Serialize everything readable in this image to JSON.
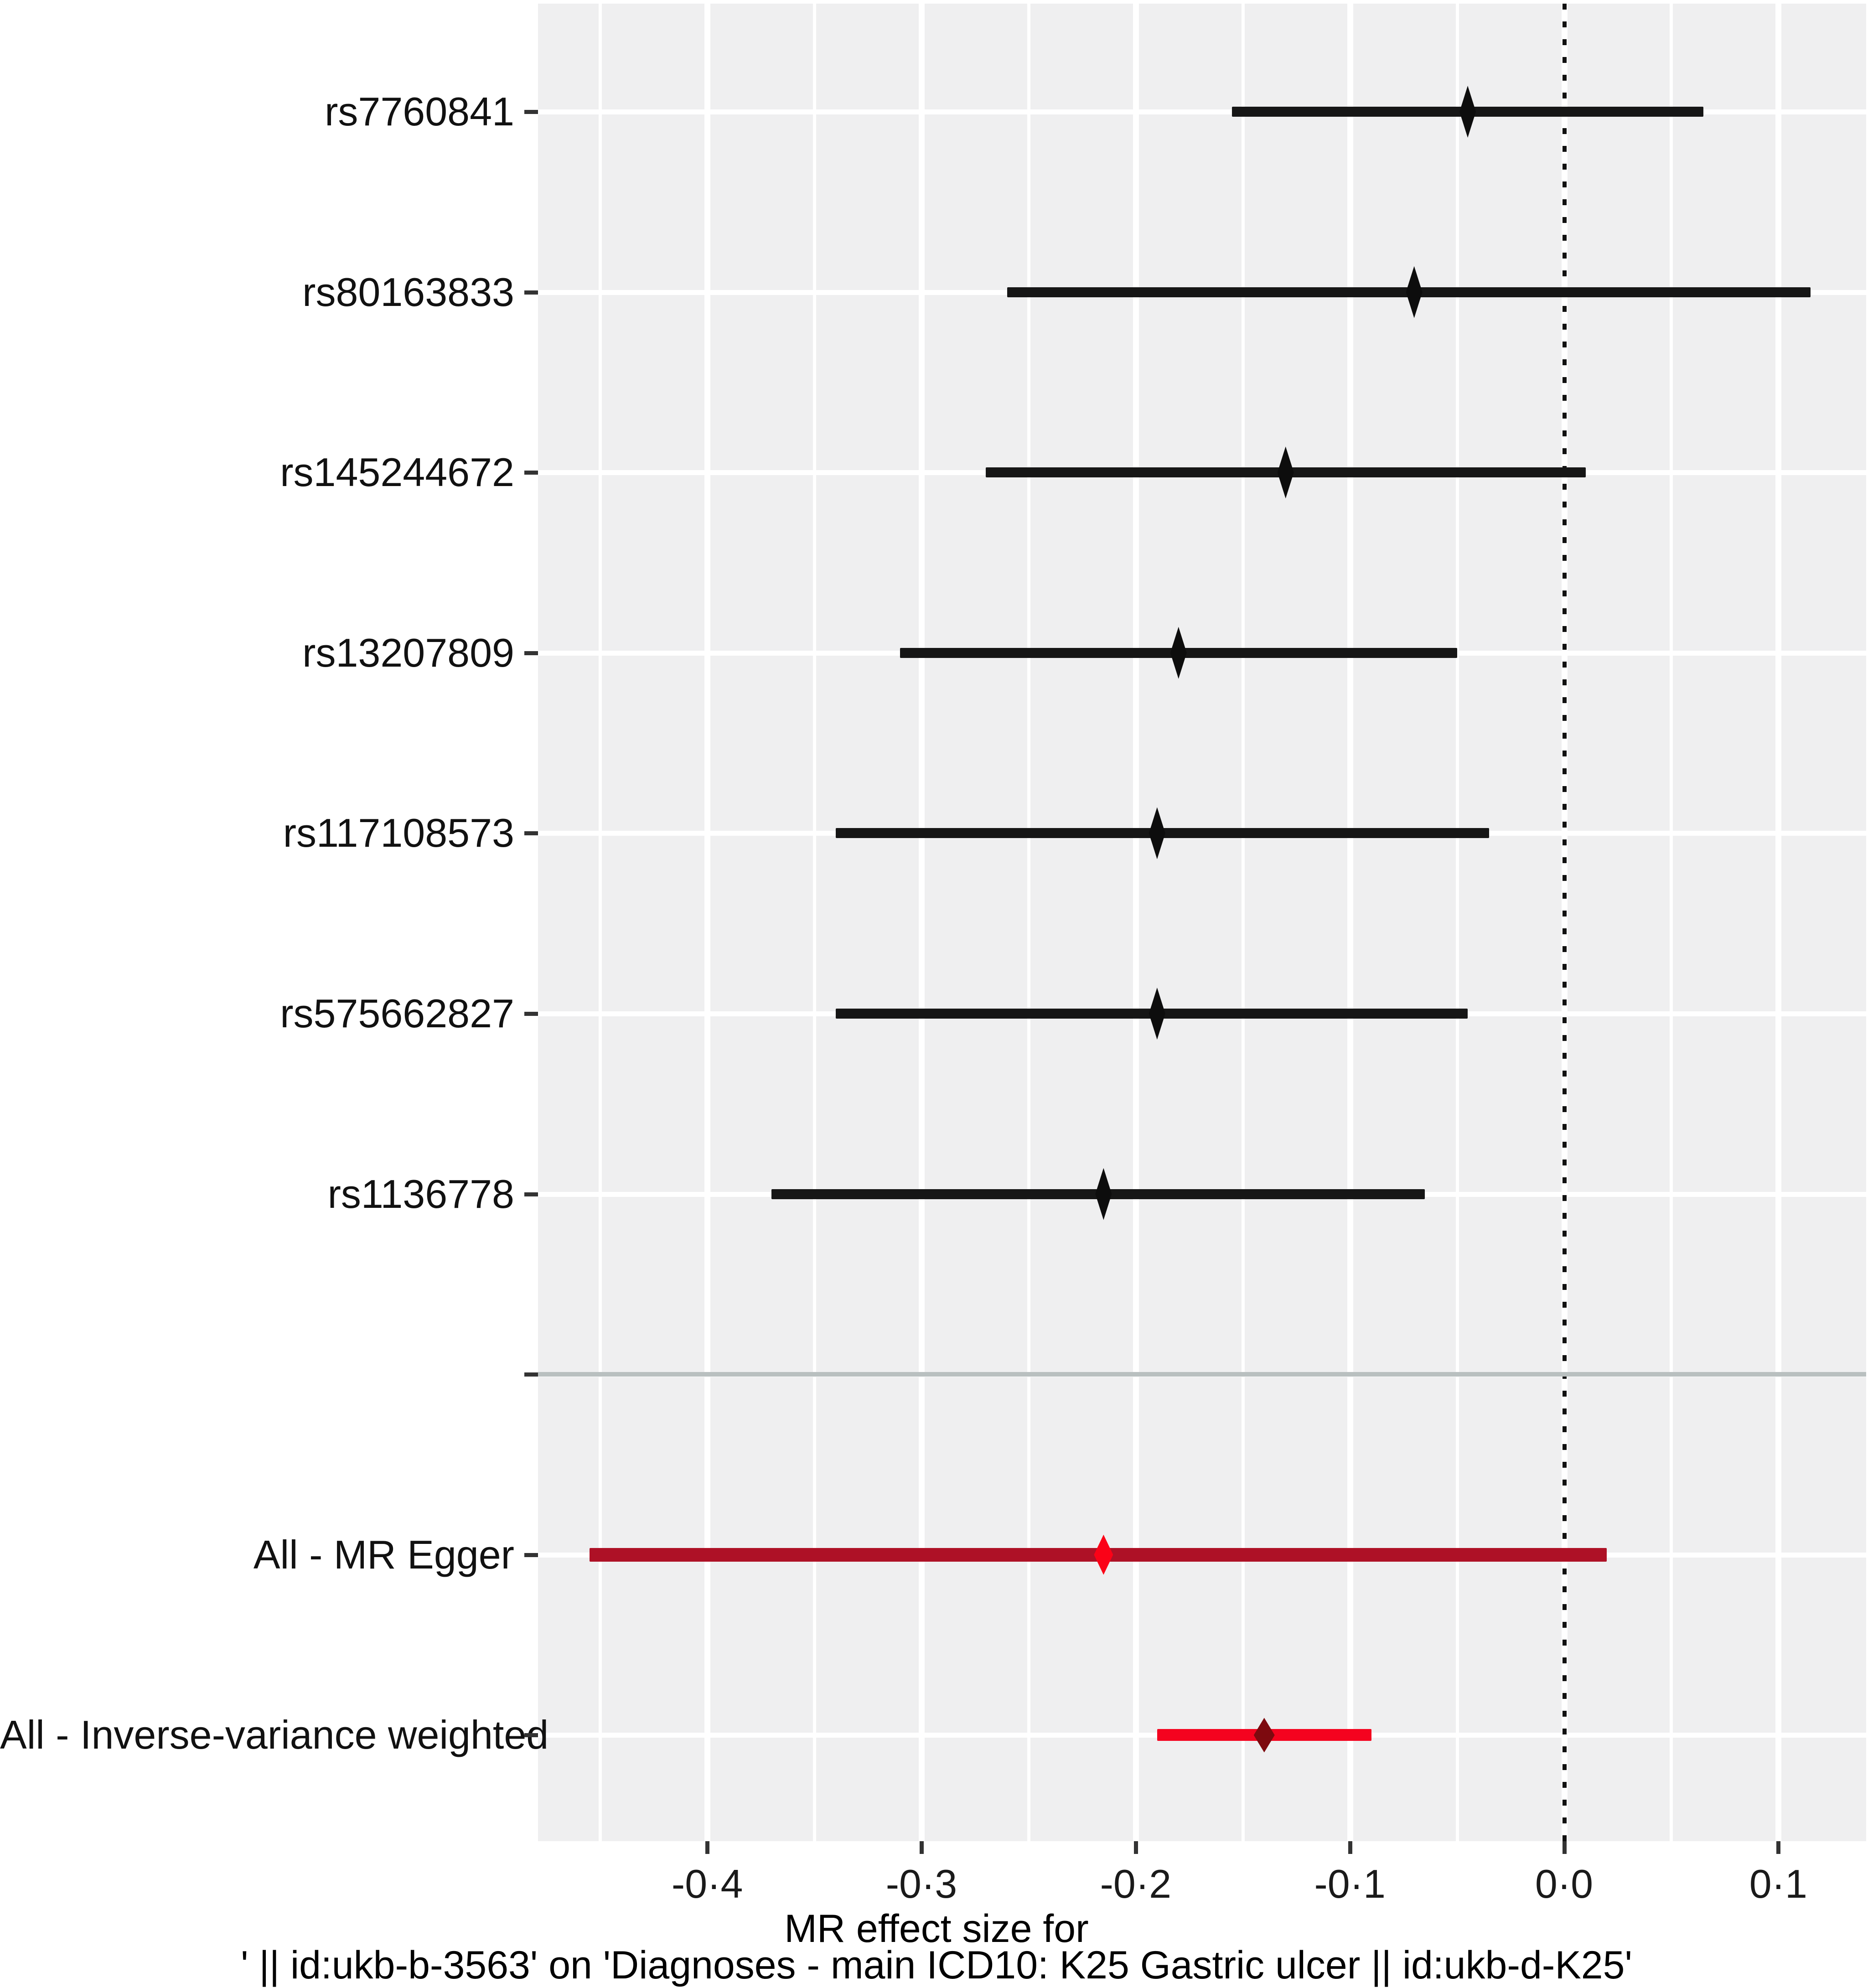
{
  "chart_data": {
    "type": "forest",
    "title": "",
    "xlabel_line1": "MR effect size for",
    "xlabel_line2": "' || id:ukb-b-3563' on 'Diagnoses - main ICD10: K25 Gastric ulcer || id:ukb-d-K25'",
    "x_axis": {
      "tick_values": [
        -0.4,
        -0.3,
        -0.2,
        -0.1,
        0.0,
        0.1
      ],
      "tick_labels": [
        "-0·4",
        "-0·3",
        "-0·2",
        "-0·1",
        "0·0",
        "0·1"
      ],
      "minor_tick_values": [
        -0.45,
        -0.35,
        -0.25,
        -0.15,
        -0.05,
        0.05
      ],
      "xlim": [
        -0.479,
        0.141
      ],
      "zero_reference_line": 0.0
    },
    "rows": [
      {
        "label": "rs7760841",
        "estimate": -0.045,
        "ci_low": -0.155,
        "ci_high": 0.065,
        "group": "snp"
      },
      {
        "label": "rs80163833",
        "estimate": -0.07,
        "ci_low": -0.26,
        "ci_high": 0.115,
        "group": "snp"
      },
      {
        "label": "rs145244672",
        "estimate": -0.13,
        "ci_low": -0.27,
        "ci_high": 0.01,
        "group": "snp"
      },
      {
        "label": "rs13207809",
        "estimate": -0.18,
        "ci_low": -0.31,
        "ci_high": -0.05,
        "group": "snp"
      },
      {
        "label": "rs117108573",
        "estimate": -0.19,
        "ci_low": -0.34,
        "ci_high": -0.035,
        "group": "snp"
      },
      {
        "label": "rs575662827",
        "estimate": -0.19,
        "ci_low": -0.34,
        "ci_high": -0.045,
        "group": "snp"
      },
      {
        "label": "rs1136778",
        "estimate": -0.215,
        "ci_low": -0.37,
        "ci_high": -0.065,
        "group": "snp"
      },
      {
        "label": "",
        "separator": true,
        "group": "separator"
      },
      {
        "label": "All - MR Egger",
        "estimate": -0.215,
        "ci_low": -0.455,
        "ci_high": 0.02,
        "group": "summary-egger"
      },
      {
        "label": "All - Inverse-variance weighted",
        "estimate": -0.14,
        "ci_low": -0.19,
        "ci_high": -0.09,
        "group": "summary-ivw"
      }
    ],
    "legend": null,
    "grid": "on",
    "colors": {
      "panel_background": "#efeff0",
      "figure_background": "#ffffff",
      "grid_major": "#ffffff",
      "grid_minor": "#ffffff",
      "zero_line": "#111111",
      "separator_line": "#b9c0c0",
      "snp_line": "#161616",
      "snp_point": "#0d0d0d",
      "egger_line": "#ae1126",
      "egger_point": "#fb0217",
      "ivw_line": "#f4031f",
      "ivw_point": "#7d0a0f",
      "tick_mark": "#333333",
      "tick_text": "#1a1a1a",
      "label_text": "#111111"
    }
  }
}
